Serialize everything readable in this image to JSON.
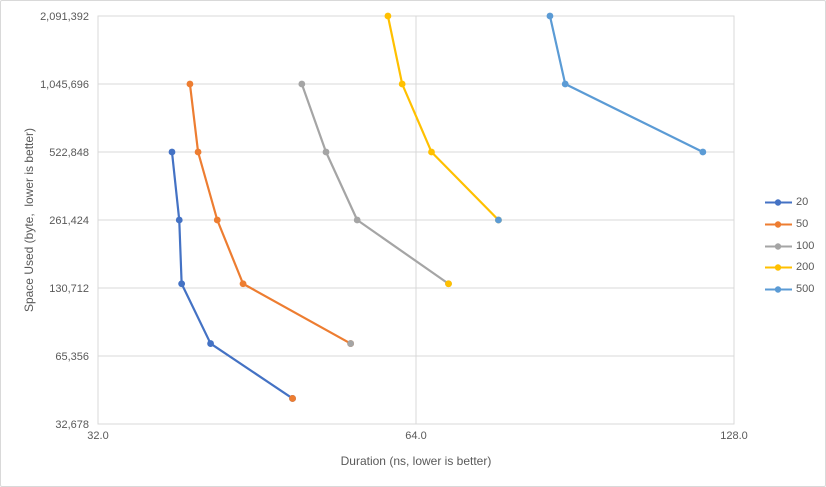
{
  "chart_data": {
    "type": "line",
    "title": "",
    "xlabel": "Duration (ns, lower is better)",
    "ylabel": "Space Used (byte,  lower is better)",
    "x_axis": {
      "scale": "log2",
      "min": 32,
      "max": 128,
      "tick_values": [
        32,
        64,
        128
      ],
      "tick_labels": [
        "32.0",
        "64.0",
        "128.0"
      ]
    },
    "y_axis": {
      "scale": "log2",
      "min": 32678,
      "max": 2091392,
      "tick_values": [
        32678,
        65356,
        130712,
        261424,
        522848,
        1045696,
        2091392
      ],
      "tick_labels": [
        "32,678",
        "65,356",
        "130,712",
        "261,424",
        "522,848",
        "1,045,696",
        "2,091,392"
      ]
    },
    "grid": true,
    "legend_position": "right",
    "series": [
      {
        "name": "20",
        "color": "#4472C4",
        "points": [
          [
            37.6,
            522848
          ],
          [
            38.2,
            261424
          ],
          [
            38.4,
            136500
          ],
          [
            40.9,
            74200
          ],
          [
            48.9,
            42400
          ]
        ]
      },
      {
        "name": "50",
        "color": "#ED7D31",
        "points": [
          [
            39.1,
            1045696
          ],
          [
            39.8,
            522848
          ],
          [
            41.5,
            261424
          ],
          [
            43.9,
            136500
          ],
          [
            55.5,
            74200
          ]
        ],
        "isolated_points": [
          [
            48.9,
            42400
          ]
        ]
      },
      {
        "name": "100",
        "color": "#A5A5A5",
        "points": [
          [
            49.9,
            1045696
          ],
          [
            52.6,
            522848
          ],
          [
            56.3,
            261424
          ],
          [
            68.7,
            136500
          ]
        ],
        "isolated_points": [
          [
            55.5,
            74200
          ]
        ]
      },
      {
        "name": "200",
        "color": "#FFC000",
        "points": [
          [
            60.2,
            2091392
          ],
          [
            62.1,
            1045696
          ],
          [
            66.2,
            522848
          ],
          [
            76.6,
            261424
          ]
        ],
        "isolated_points": [
          [
            68.7,
            136500
          ]
        ]
      },
      {
        "name": "500",
        "color": "#5B9BD5",
        "points": [
          [
            85.7,
            2091392
          ],
          [
            88.6,
            1045696
          ],
          [
            119.6,
            522848
          ]
        ],
        "isolated_points": [
          [
            76.6,
            261424
          ]
        ]
      }
    ],
    "colors": {
      "gridline": "#D9D9D9",
      "plot_border": "#D9D9D9",
      "axis_text": "#595959",
      "background": "#FFFFFF"
    }
  }
}
